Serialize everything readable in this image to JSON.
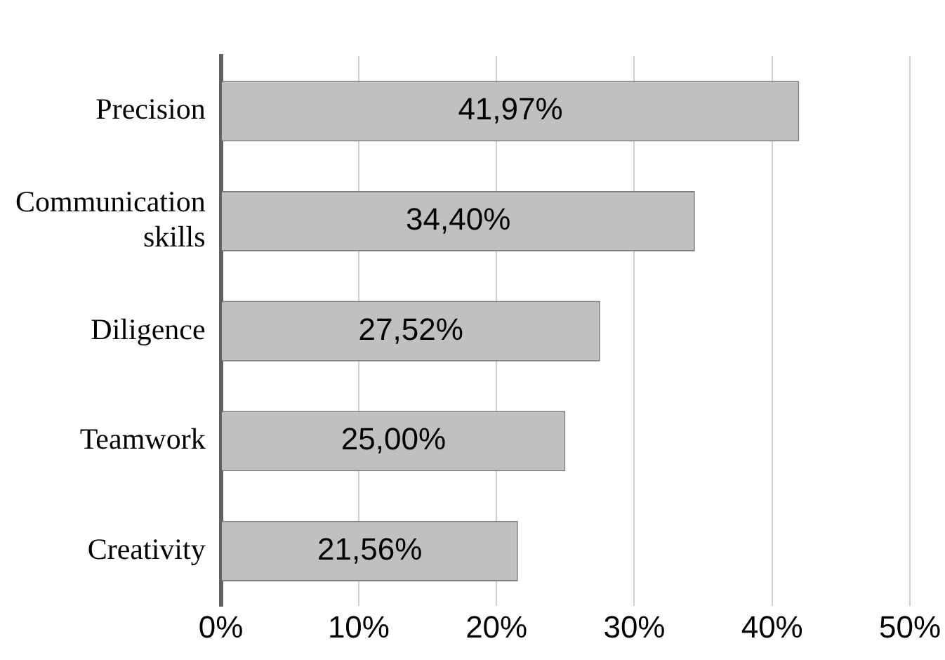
{
  "chart_data": {
    "type": "bar",
    "orientation": "horizontal",
    "categories": [
      "Precision",
      "Communication skills",
      "Diligence",
      "Teamwork",
      "Creativity"
    ],
    "values": [
      41.97,
      34.4,
      27.52,
      25,
      21.56
    ],
    "value_labels": [
      "41,97%",
      "34,40%",
      "27,52%",
      "25,00%",
      "21,56%"
    ],
    "color": "#c0c0c0",
    "xlim": [
      0,
      50
    ],
    "xticks": [
      {
        "value": 0,
        "label": "0%"
      },
      {
        "value": 10,
        "label": "10%"
      },
      {
        "value": 20,
        "label": "20%"
      },
      {
        "value": 30,
        "label": "30%"
      },
      {
        "value": 40,
        "label": "40%"
      },
      {
        "value": 50,
        "label": "50%"
      }
    ],
    "grid": "x"
  }
}
